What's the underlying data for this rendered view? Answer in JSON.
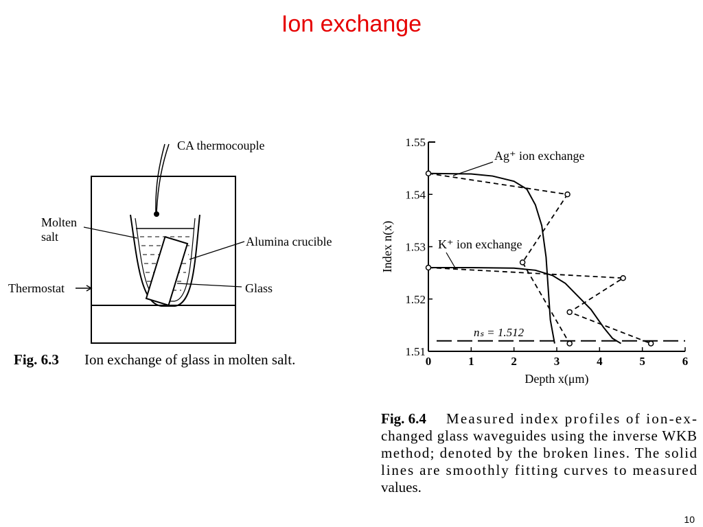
{
  "slide": {
    "title": "Ion exchange",
    "page_number": "10"
  },
  "figure_6_3": {
    "labels": {
      "thermocouple": "CA thermocouple",
      "molten_salt_1": "Molten",
      "molten_salt_2": "salt",
      "crucible": "Alumina crucible",
      "thermostat": "Thermostat",
      "glass": "Glass"
    },
    "caption_label": "Fig. 6.3",
    "caption_text": "Ion exchange of glass in molten salt."
  },
  "figure_6_4": {
    "caption_label": "Fig. 6.4",
    "caption_lines": [
      "Measured index profiles of ion-ex-",
      "changed glass waveguides using the inverse WKB",
      "method; denoted by the broken lines. The solid",
      "lines are smoothly fitting curves to measured",
      "values."
    ]
  },
  "chart_data": {
    "type": "line",
    "xlabel": "Depth x(μm)",
    "ylabel": "Index n(x)",
    "xlim": [
      0,
      6
    ],
    "ylim": [
      1.51,
      1.55
    ],
    "xticks": [
      0,
      1,
      2,
      3,
      4,
      5,
      6
    ],
    "yticks": [
      1.51,
      1.52,
      1.53,
      1.54,
      1.55
    ],
    "series": [
      {
        "name": "Ag⁺ ion exchange",
        "color": "#000000",
        "x": [
          0,
          1,
          1.5,
          2,
          2.3,
          2.5,
          2.65,
          2.75,
          2.8,
          2.85,
          2.95
        ],
        "values": [
          1.544,
          1.5439,
          1.5435,
          1.5425,
          1.541,
          1.538,
          1.534,
          1.528,
          1.522,
          1.516,
          1.5115
        ],
        "measured_x": [
          0,
          3.25,
          2.2,
          3.3
        ],
        "measured_values": [
          1.544,
          1.54,
          1.527,
          1.5115
        ]
      },
      {
        "name": "K⁺ ion exchange",
        "color": "#000000",
        "x": [
          0,
          1,
          2,
          2.5,
          2.9,
          3.2,
          3.5,
          3.8,
          4.1,
          4.3,
          4.5
        ],
        "values": [
          1.526,
          1.526,
          1.5259,
          1.5255,
          1.5245,
          1.523,
          1.5205,
          1.518,
          1.5145,
          1.5125,
          1.5115
        ],
        "measured_x": [
          0,
          4.55,
          3.3,
          5.2
        ],
        "measured_values": [
          1.526,
          1.524,
          1.5175,
          1.5115
        ]
      }
    ],
    "substrate_line": {
      "label": "nₛ = 1.512",
      "value": 1.512
    }
  }
}
